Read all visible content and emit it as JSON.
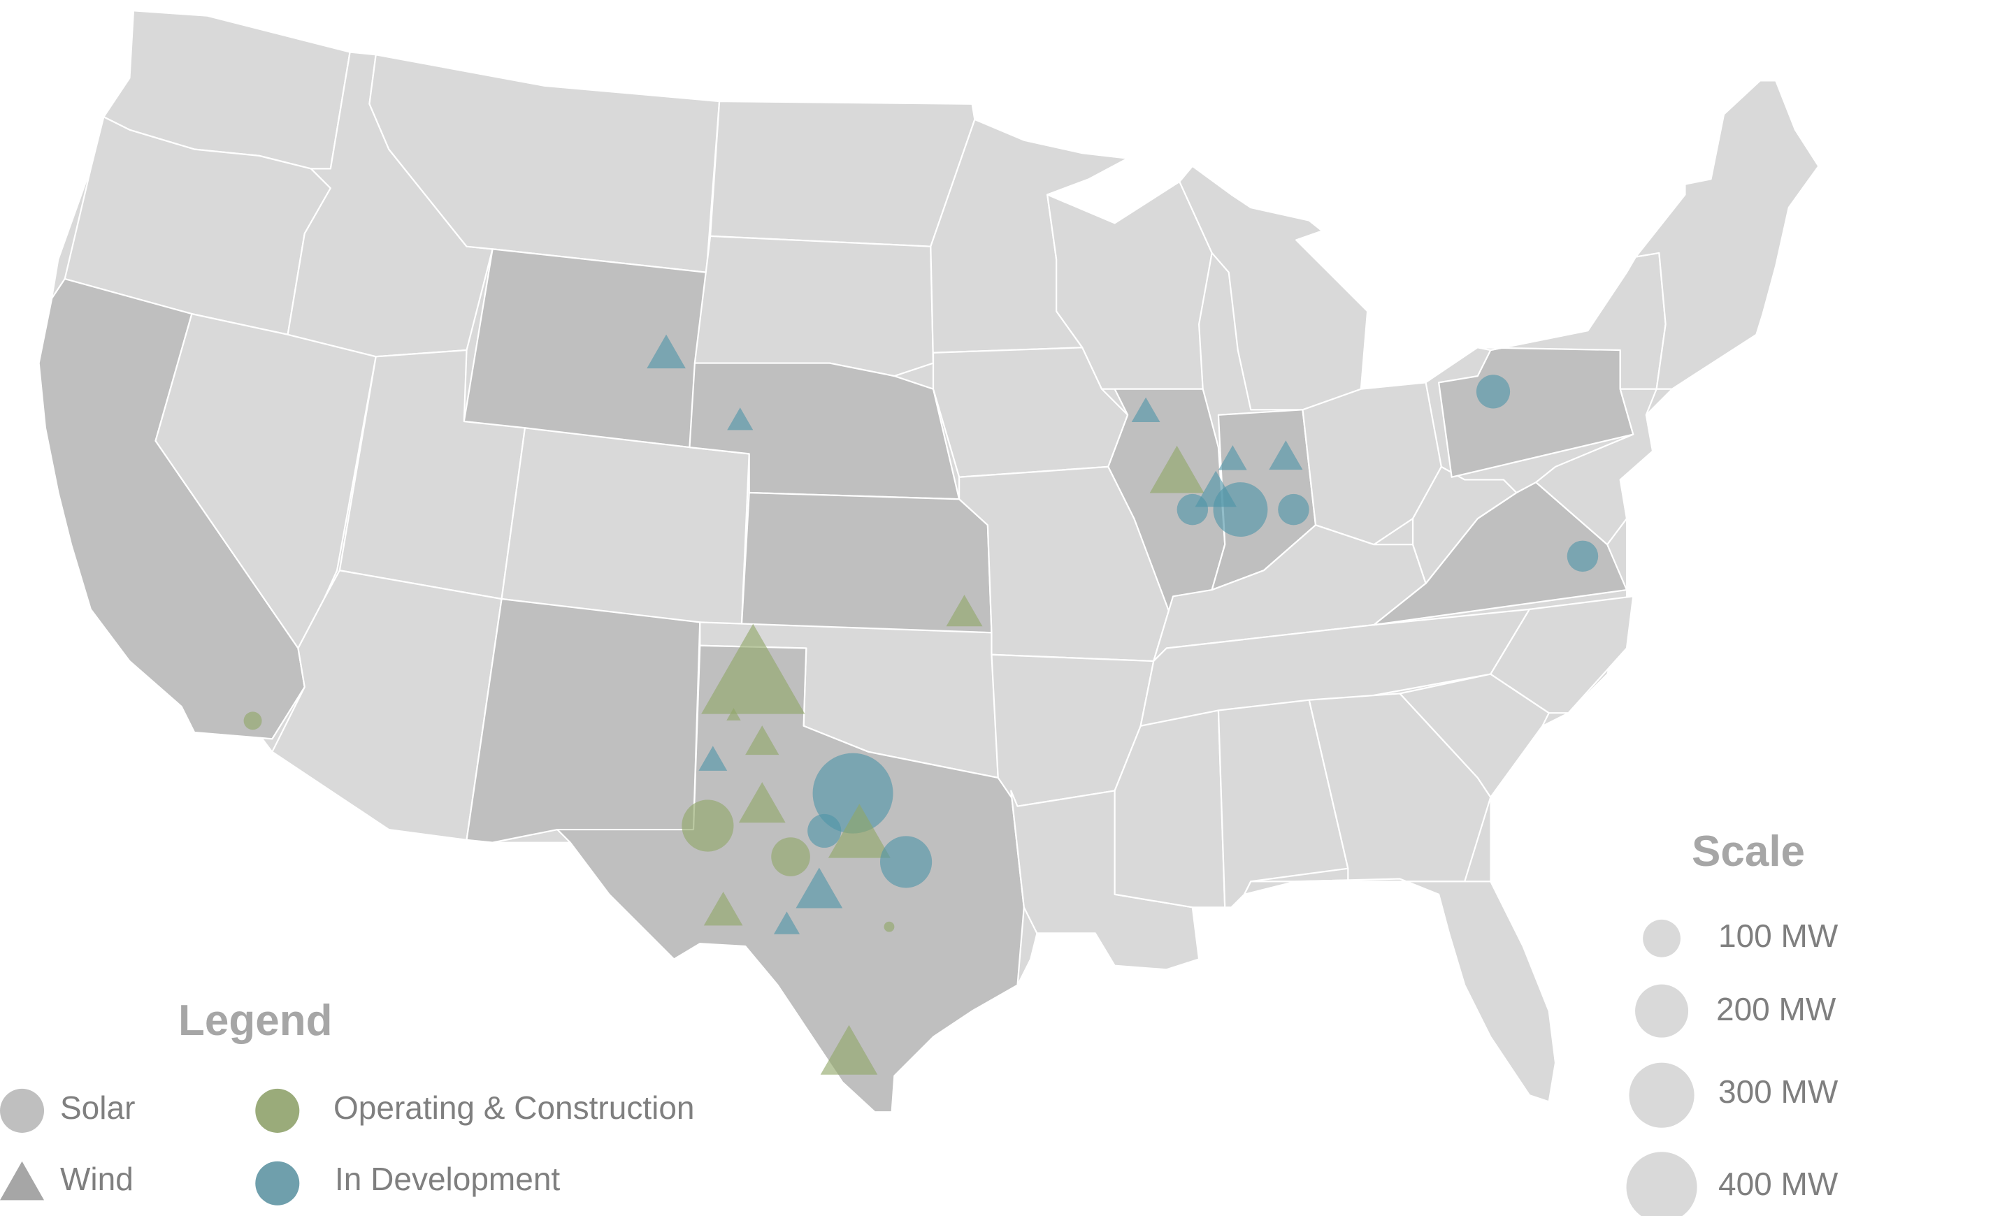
{
  "legend": {
    "title": "Legend",
    "items": [
      {
        "label": "Solar",
        "icon": "circle-icon",
        "color": "#bfbfbf"
      },
      {
        "label": "Wind",
        "icon": "triangle-icon",
        "color": "#a6a6a6"
      },
      {
        "label": "Operating & Construction",
        "icon": "circle-icon",
        "color": "#9aab7a"
      },
      {
        "label": "In Development",
        "icon": "circle-icon",
        "color": "#6f9fac"
      }
    ]
  },
  "scale": {
    "title": "Scale",
    "items": [
      {
        "label": "100 MW",
        "mw": 100
      },
      {
        "label": "200 MW",
        "mw": 200
      },
      {
        "label": "300 MW",
        "mw": 300
      },
      {
        "label": "400 MW",
        "mw": 400
      }
    ]
  },
  "colors": {
    "background": "#ffffff",
    "state_default": "#d9d9d9",
    "state_highlight": "#bfbfbf",
    "state_border": "#ffffff",
    "operating": "#8fa768",
    "development": "#4f95a8",
    "text": "#7f7f7f",
    "title": "#a6a6a6"
  },
  "highlighted_states": [
    "California",
    "Wyoming",
    "Nebraska",
    "Kansas",
    "New Mexico",
    "Texas",
    "Illinois",
    "Indiana",
    "Pennsylvania",
    "Virginia"
  ],
  "projects": [
    {
      "type": "wind",
      "status": "development",
      "state": "Wyoming"
    },
    {
      "type": "wind",
      "status": "development",
      "state": "Nebraska"
    },
    {
      "type": "wind",
      "status": "operating",
      "state": "Kansas"
    },
    {
      "type": "solar",
      "status": "operating",
      "state": "California"
    },
    {
      "type": "wind",
      "status": "operating",
      "state": "New Mexico"
    },
    {
      "type": "wind",
      "status": "operating",
      "state": "New Mexico"
    },
    {
      "type": "wind",
      "status": "operating",
      "state": "Texas"
    },
    {
      "type": "wind",
      "status": "development",
      "state": "Texas"
    },
    {
      "type": "wind",
      "status": "operating",
      "state": "Texas"
    },
    {
      "type": "solar",
      "status": "operating",
      "state": "Texas"
    },
    {
      "type": "solar",
      "status": "development",
      "state": "Texas"
    },
    {
      "type": "solar",
      "status": "development",
      "state": "Texas"
    },
    {
      "type": "wind",
      "status": "operating",
      "state": "Texas"
    },
    {
      "type": "solar",
      "status": "operating",
      "state": "Texas"
    },
    {
      "type": "solar",
      "status": "development",
      "state": "Texas"
    },
    {
      "type": "wind",
      "status": "development",
      "state": "Texas"
    },
    {
      "type": "wind",
      "status": "operating",
      "state": "Texas"
    },
    {
      "type": "wind",
      "status": "development",
      "state": "Texas"
    },
    {
      "type": "solar",
      "status": "operating",
      "state": "Texas"
    },
    {
      "type": "wind",
      "status": "operating",
      "state": "Texas"
    },
    {
      "type": "wind",
      "status": "development",
      "state": "Illinois"
    },
    {
      "type": "wind",
      "status": "operating",
      "state": "Illinois"
    },
    {
      "type": "wind",
      "status": "development",
      "state": "Indiana"
    },
    {
      "type": "wind",
      "status": "development",
      "state": "Indiana"
    },
    {
      "type": "wind",
      "status": "development",
      "state": "Indiana"
    },
    {
      "type": "solar",
      "status": "development",
      "state": "Illinois"
    },
    {
      "type": "solar",
      "status": "development",
      "state": "Indiana"
    },
    {
      "type": "solar",
      "status": "development",
      "state": "Indiana"
    },
    {
      "type": "solar",
      "status": "development",
      "state": "Pennsylvania"
    },
    {
      "type": "solar",
      "status": "development",
      "state": "Virginia"
    }
  ]
}
